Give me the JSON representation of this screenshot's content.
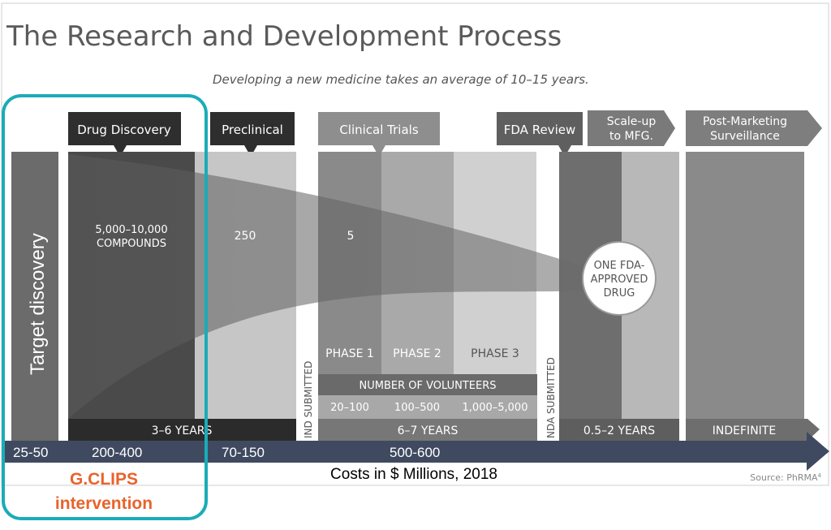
{
  "title": "The Research and Development Process",
  "subtitle": "Developing a new medicine takes an average of 10–15 years.",
  "stages": {
    "drug_discovery": "Drug Discovery",
    "preclinical": "Preclinical",
    "clinical_trials": "Clinical Trials",
    "fda_review": "FDA Review",
    "scale_up_line1": "Scale-up",
    "scale_up_line2": "to MFG.",
    "post_marketing_line1": "Post-Marketing",
    "post_marketing_line2": "Surveillance"
  },
  "target_discovery": "Target discovery",
  "counts": {
    "compounds_line1": "5,000–10,000",
    "compounds_line2": "COMPOUNDS",
    "preclinical": "250",
    "clinical": "5",
    "approved_line1": "ONE FDA-",
    "approved_line2": "APPROVED",
    "approved_line3": "DRUG"
  },
  "milestones": {
    "ind": "IND SUBMITTED",
    "nda": "NDA SUBMITTED"
  },
  "phases": {
    "phase1": "PHASE 1",
    "phase2": "PHASE 2",
    "phase3": "PHASE 3",
    "volunteers_label": "NUMBER OF VOLUNTEERS",
    "v1": "20–100",
    "v2": "100–500",
    "v3": "1,000–5,000"
  },
  "durations": {
    "discovery": "3–6  YEARS",
    "clinical": "6–7  YEARS",
    "review": "0.5–2 YEARS",
    "post": "INDEFINITE"
  },
  "costs": {
    "c1": "25-50",
    "c2": "200-400",
    "c3": "70-150",
    "c4": "500-600",
    "caption": "Costs in $ Millions, 2018"
  },
  "source": "Source: PhRMA",
  "source_sup": "4",
  "highlight": {
    "line1": "G.CLIPS",
    "line2": "intervention"
  },
  "colors": {
    "highlight_box": "#1aacb8",
    "highlight_text": "#e8632c",
    "cost_arrow": "#3f4a60"
  }
}
